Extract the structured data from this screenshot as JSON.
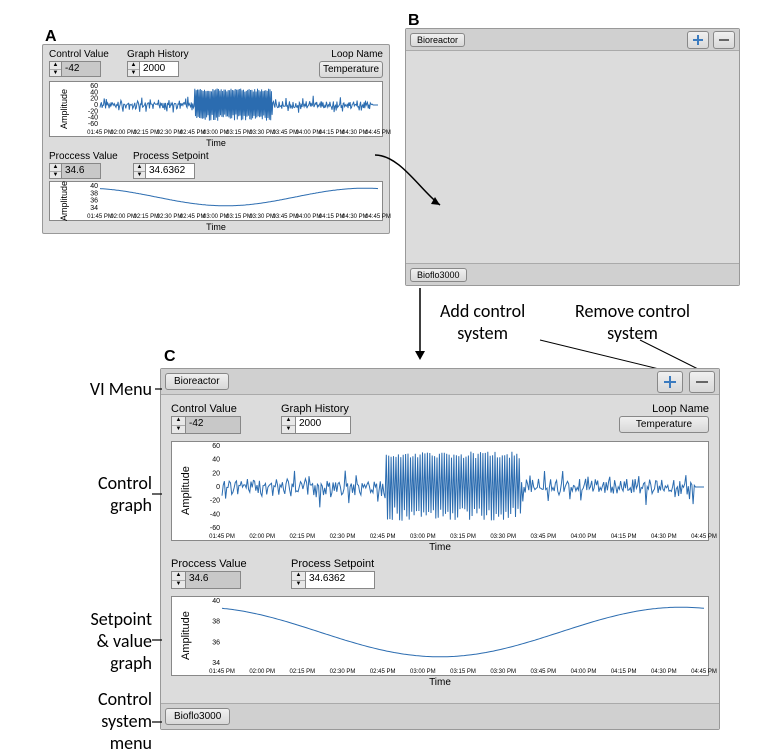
{
  "labels": {
    "A": "A",
    "B": "B",
    "C": "C"
  },
  "annotations": {
    "vi_menu": "VI Menu",
    "control_graph_l1": "Control",
    "control_graph_l2": "graph",
    "setpoint_l1": "Setpoint",
    "setpoint_l2": "& value",
    "setpoint_l3": "graph",
    "control_sys_l1": "Control",
    "control_sys_l2": "system",
    "control_sys_l3": "menu",
    "add_l1": "Add control",
    "add_l2": "system",
    "remove_l1": "Remove control",
    "remove_l2": "system"
  },
  "common": {
    "control_value_label": "Control Value",
    "graph_history_label": "Graph History",
    "loop_name_label": "Loop Name",
    "process_value_label": "Proccess Value",
    "process_setpoint_label": "Process Setpoint",
    "control_value": "-42",
    "graph_history": "2000",
    "loop_name": "Temperature",
    "process_value": "34.6",
    "process_setpoint": "34.6362",
    "ylabel": "Amplitude",
    "xlabel": "Time",
    "bioreactor_btn": "Bioreactor",
    "bioflo_btn": "Bioflo3000"
  },
  "chart_control": {
    "type": "line",
    "ylim": [
      -60,
      60
    ],
    "yticks": [
      -60,
      -40,
      -20,
      0,
      20,
      40,
      60
    ],
    "xticks": [
      "01:45 PM",
      "02:00 PM",
      "02:15 PM",
      "02:30 PM",
      "02:45 PM",
      "03:00 PM",
      "03:15 PM",
      "03:30 PM",
      "03:45 PM",
      "04:00 PM",
      "04:15 PM",
      "04:30 PM",
      "04:45 PM"
    ],
    "line_color": "#2b6cb0",
    "background_color": "#ffffff"
  },
  "chart_setpoint": {
    "type": "line",
    "ylim": [
      34,
      40
    ],
    "yticks": [
      34,
      36,
      38,
      40
    ],
    "xticks": [
      "01:45 PM",
      "02:00 PM",
      "02:15 PM",
      "02:30 PM",
      "02:45 PM",
      "03:00 PM",
      "03:15 PM",
      "03:30 PM",
      "03:45 PM",
      "04:00 PM",
      "04:15 PM",
      "04:30 PM",
      "04:45 PM"
    ],
    "line_color": "#2b6cb0",
    "background_color": "#ffffff"
  },
  "colors": {
    "panel_bg": "#dcdcdc",
    "plus_icon": "#3b7bbf",
    "minus_icon": "#666666"
  }
}
